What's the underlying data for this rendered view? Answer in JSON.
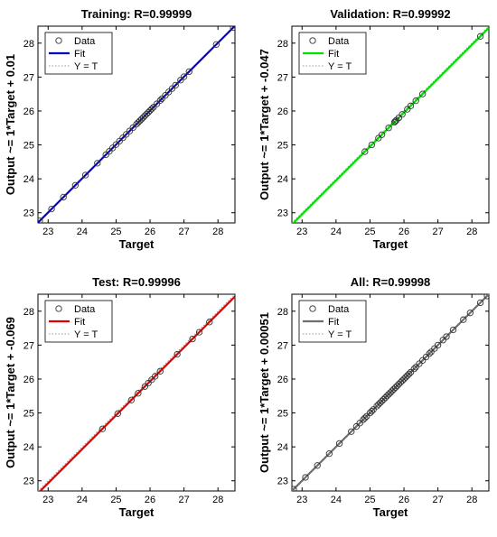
{
  "chart_data": [
    {
      "type": "scatter",
      "title": "Training: R=0.99999",
      "xlabel": "Target",
      "ylabel": "Output ~= 1*Target + 0.01",
      "xlim": [
        22.7,
        28.5
      ],
      "ylim": [
        22.7,
        28.5
      ],
      "xticks": [
        "23",
        "24",
        "25",
        "26",
        "27",
        "28"
      ],
      "yticks": [
        "23",
        "24",
        "25",
        "26",
        "27",
        "28"
      ],
      "fit_color": "#0000bf",
      "fit": {
        "slope": 1,
        "intercept": 0.01
      },
      "legend": [
        "Data",
        "Fit",
        "Y = T"
      ],
      "legend_position": "top-left",
      "x": [
        22.75,
        23.1,
        23.45,
        23.8,
        24.1,
        24.45,
        24.7,
        24.8,
        24.9,
        25.0,
        25.1,
        25.2,
        25.3,
        25.4,
        25.5,
        25.6,
        25.65,
        25.7,
        25.75,
        25.8,
        25.85,
        25.9,
        25.95,
        26.0,
        26.05,
        26.1,
        26.2,
        26.3,
        26.35,
        26.45,
        26.55,
        26.65,
        26.75,
        26.9,
        27.0,
        27.15,
        27.95,
        28.45
      ],
      "y": [
        22.76,
        23.11,
        23.46,
        23.81,
        24.11,
        24.46,
        24.71,
        24.81,
        24.91,
        25.01,
        25.11,
        25.21,
        25.31,
        25.41,
        25.51,
        25.61,
        25.66,
        25.71,
        25.76,
        25.81,
        25.86,
        25.91,
        25.96,
        26.01,
        26.06,
        26.11,
        26.21,
        26.31,
        26.36,
        26.46,
        26.56,
        26.66,
        26.76,
        26.91,
        27.01,
        27.16,
        27.96,
        28.46
      ]
    },
    {
      "type": "scatter",
      "title": "Validation: R=0.99992",
      "xlabel": "Target",
      "ylabel": "Output ~= 1*Target + -0.047",
      "xlim": [
        22.7,
        28.5
      ],
      "ylim": [
        22.7,
        28.5
      ],
      "xticks": [
        "23",
        "24",
        "25",
        "26",
        "27",
        "28"
      ],
      "yticks": [
        "23",
        "24",
        "25",
        "26",
        "27",
        "28"
      ],
      "fit_color": "#00e000",
      "fit": {
        "slope": 1,
        "intercept": -0.047
      },
      "legend": [
        "Data",
        "Fit",
        "Y = T"
      ],
      "legend_position": "top-left",
      "x": [
        24.85,
        25.05,
        25.25,
        25.35,
        25.55,
        25.72,
        25.75,
        25.78,
        25.85,
        25.95,
        26.1,
        26.2,
        26.35,
        26.55,
        28.25
      ],
      "y": [
        24.8,
        25.0,
        25.2,
        25.3,
        25.5,
        25.67,
        25.7,
        25.73,
        25.8,
        25.9,
        26.05,
        26.15,
        26.3,
        26.5,
        28.2
      ]
    },
    {
      "type": "scatter",
      "title": "Test: R=0.99996",
      "xlabel": "Target",
      "ylabel": "Output ~= 1*Target + -0.069",
      "xlim": [
        22.7,
        28.5
      ],
      "ylim": [
        22.7,
        28.5
      ],
      "xticks": [
        "23",
        "24",
        "25",
        "26",
        "27",
        "28"
      ],
      "yticks": [
        "23",
        "24",
        "25",
        "26",
        "27",
        "28"
      ],
      "fit_color": "#e00000",
      "fit": {
        "slope": 1,
        "intercept": -0.069
      },
      "legend": [
        "Data",
        "Fit",
        "Y = T"
      ],
      "legend_position": "top-left",
      "x": [
        24.6,
        25.05,
        25.45,
        25.65,
        25.85,
        25.95,
        26.05,
        26.15,
        26.3,
        26.8,
        27.25,
        27.45,
        27.75
      ],
      "y": [
        24.53,
        24.98,
        25.38,
        25.58,
        25.78,
        25.88,
        25.98,
        26.08,
        26.23,
        26.73,
        27.18,
        27.38,
        27.68
      ]
    },
    {
      "type": "scatter",
      "title": "All: R=0.99998",
      "xlabel": "Target",
      "ylabel": "Output ~= 1*Target + 0.00051",
      "xlim": [
        22.7,
        28.5
      ],
      "ylim": [
        22.7,
        28.5
      ],
      "xticks": [
        "23",
        "24",
        "25",
        "26",
        "27",
        "28"
      ],
      "yticks": [
        "23",
        "24",
        "25",
        "26",
        "27",
        "28"
      ],
      "fit_color": "#6e6e6e",
      "fit": {
        "slope": 1,
        "intercept": 0.00051
      },
      "legend": [
        "Data",
        "Fit",
        "Y = T"
      ],
      "legend_position": "top-left",
      "x": [
        22.75,
        23.1,
        23.45,
        23.8,
        24.1,
        24.45,
        24.6,
        24.7,
        24.8,
        24.85,
        24.9,
        25.0,
        25.05,
        25.1,
        25.2,
        25.25,
        25.3,
        25.35,
        25.4,
        25.45,
        25.5,
        25.55,
        25.6,
        25.65,
        25.7,
        25.75,
        25.8,
        25.85,
        25.9,
        25.95,
        26.0,
        26.05,
        26.1,
        26.15,
        26.2,
        26.3,
        26.35,
        26.45,
        26.55,
        26.65,
        26.75,
        26.8,
        26.9,
        27.0,
        27.15,
        27.25,
        27.45,
        27.75,
        27.95,
        28.25,
        28.45
      ],
      "y": [
        22.75,
        23.1,
        23.45,
        23.8,
        24.1,
        24.45,
        24.6,
        24.7,
        24.8,
        24.85,
        24.9,
        25.0,
        25.05,
        25.1,
        25.2,
        25.25,
        25.3,
        25.35,
        25.4,
        25.45,
        25.5,
        25.55,
        25.6,
        25.65,
        25.7,
        25.75,
        25.8,
        25.85,
        25.9,
        25.95,
        26.0,
        26.05,
        26.1,
        26.15,
        26.2,
        26.3,
        26.35,
        26.45,
        26.55,
        26.65,
        26.75,
        26.8,
        26.9,
        27.0,
        27.15,
        27.25,
        27.45,
        27.75,
        27.95,
        28.25,
        28.45
      ]
    }
  ]
}
